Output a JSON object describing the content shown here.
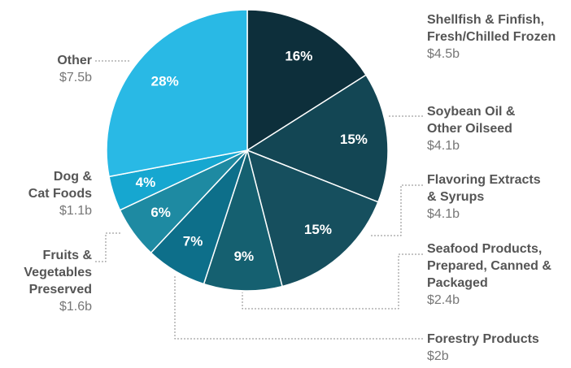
{
  "chart_data": {
    "type": "pie",
    "categories": [
      "Shellfish & Finfish,\nFresh/Chilled Frozen",
      "Soybean Oil &\nOther Oilseed",
      "Flavoring Extracts\n& Syrups",
      "Seafood Products,\nPrepared, Canned &\nPackaged",
      "Forestry Products",
      "Fruits &\nVegetables\nPreserved",
      "Dog &\nCat Foods",
      "Other"
    ],
    "values": [
      16,
      15,
      15,
      9,
      7,
      6,
      4,
      28
    ],
    "value_labels": [
      "16%",
      "15%",
      "15%",
      "9%",
      "7%",
      "6%",
      "4%",
      "28%"
    ],
    "amount_labels": [
      "$4.5b",
      "$4.1b",
      "$4.1b",
      "$2.4b",
      "$2b",
      "$1.6b",
      "$1.1b",
      "$7.5b"
    ],
    "colors": [
      "#0d2f3b",
      "#134654",
      "#164f5e",
      "#156070",
      "#0d6f8a",
      "#1e8aa2",
      "#16a7d0",
      "#29b9e5"
    ]
  }
}
